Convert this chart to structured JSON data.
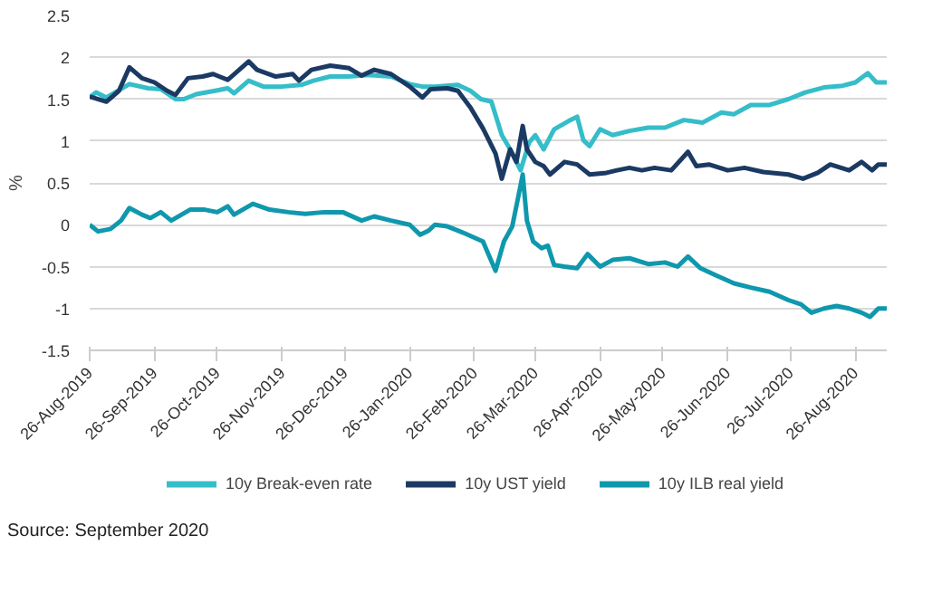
{
  "chart_data": {
    "type": "line",
    "ylabel": "%",
    "xlim": [
      "2019-08-26",
      "2020-09-10"
    ],
    "xticks": [
      {
        "value": "2019-08-26",
        "label": "26-Aug-2019"
      },
      {
        "value": "2019-09-26",
        "label": "26-Sep-2019"
      },
      {
        "value": "2019-10-26",
        "label": "26-Oct-2019"
      },
      {
        "value": "2019-11-26",
        "label": "26-Nov-2019"
      },
      {
        "value": "2019-12-26",
        "label": "26-Dec-2019"
      },
      {
        "value": "2020-01-26",
        "label": "26-Jan-2020"
      },
      {
        "value": "2020-02-26",
        "label": "26-Feb-2020"
      },
      {
        "value": "2020-03-26",
        "label": "26-Mar-2020"
      },
      {
        "value": "2020-04-26",
        "label": "26-Apr-2020"
      },
      {
        "value": "2020-05-26",
        "label": "26-May-2020"
      },
      {
        "value": "2020-06-26",
        "label": "26-Jun-2020"
      },
      {
        "value": "2020-07-26",
        "label": "26-Jul-2020"
      },
      {
        "value": "2020-08-26",
        "label": "26-Aug-2020"
      }
    ],
    "ylim": [
      -1.5,
      2.5
    ],
    "yticks": [
      -1.5,
      -1,
      -0.5,
      0,
      0.5,
      1,
      1.5,
      2,
      2.5
    ],
    "grid": "y",
    "legend": "bottom",
    "marker": "none",
    "line_style": "solid",
    "annotations": [
      "Source: September 2020"
    ],
    "series": [
      {
        "name": "10y Break-even rate",
        "color": "#35bdc9",
        "x": [
          "2019-08-26",
          "2019-08-29",
          "2019-09-03",
          "2019-09-14",
          "2019-09-23",
          "2019-09-29",
          "2019-10-06",
          "2019-10-10",
          "2019-10-16",
          "2019-10-25",
          "2019-10-31",
          "2019-11-03",
          "2019-11-10",
          "2019-11-17",
          "2019-11-26",
          "2019-12-05",
          "2019-12-11",
          "2019-12-19",
          "2019-12-28",
          "2020-01-06",
          "2020-01-17",
          "2020-01-26",
          "2020-02-01",
          "2020-02-07",
          "2020-02-18",
          "2020-02-24",
          "2020-02-29",
          "2020-03-05",
          "2020-03-10",
          "2020-03-14",
          "2020-03-19",
          "2020-03-23",
          "2020-03-26",
          "2020-03-30",
          "2020-04-04",
          "2020-04-11",
          "2020-04-15",
          "2020-04-18",
          "2020-04-21",
          "2020-04-26",
          "2020-05-02",
          "2020-05-10",
          "2020-05-19",
          "2020-05-27",
          "2020-06-05",
          "2020-06-14",
          "2020-06-23",
          "2020-06-29",
          "2020-07-07",
          "2020-07-16",
          "2020-07-25",
          "2020-08-02",
          "2020-08-11",
          "2020-08-20",
          "2020-08-26",
          "2020-09-01",
          "2020-09-05",
          "2020-09-10"
        ],
        "values": [
          1.52,
          1.58,
          1.52,
          1.68,
          1.63,
          1.62,
          1.5,
          1.5,
          1.56,
          1.6,
          1.63,
          1.57,
          1.72,
          1.65,
          1.65,
          1.67,
          1.72,
          1.77,
          1.77,
          1.79,
          1.77,
          1.68,
          1.65,
          1.65,
          1.67,
          1.6,
          1.5,
          1.47,
          1.07,
          0.9,
          0.65,
          0.98,
          1.07,
          0.9,
          1.14,
          1.24,
          1.29,
          1.01,
          0.94,
          1.14,
          1.07,
          1.12,
          1.16,
          1.16,
          1.25,
          1.22,
          1.34,
          1.32,
          1.43,
          1.43,
          1.5,
          1.58,
          1.64,
          1.66,
          1.7,
          1.81,
          1.7,
          1.7
        ]
      },
      {
        "name": "10y UST yield",
        "color": "#1b3a63",
        "x": [
          "2019-08-26",
          "2019-09-03",
          "2019-09-09",
          "2019-09-14",
          "2019-09-20",
          "2019-09-26",
          "2019-10-02",
          "2019-10-06",
          "2019-10-12",
          "2019-10-19",
          "2019-10-24",
          "2019-10-31",
          "2019-11-10",
          "2019-11-14",
          "2019-11-23",
          "2019-12-01",
          "2019-12-04",
          "2019-12-10",
          "2019-12-19",
          "2019-12-28",
          "2020-01-03",
          "2020-01-09",
          "2020-01-17",
          "2020-01-26",
          "2020-02-01",
          "2020-02-05",
          "2020-02-13",
          "2020-02-18",
          "2020-02-24",
          "2020-03-01",
          "2020-03-07",
          "2020-03-10",
          "2020-03-14",
          "2020-03-17",
          "2020-03-20",
          "2020-03-22",
          "2020-03-26",
          "2020-03-30",
          "2020-04-02",
          "2020-04-09",
          "2020-04-15",
          "2020-04-21",
          "2020-04-29",
          "2020-05-04",
          "2020-05-10",
          "2020-05-16",
          "2020-05-22",
          "2020-05-30",
          "2020-06-07",
          "2020-06-11",
          "2020-06-17",
          "2020-06-26",
          "2020-07-04",
          "2020-07-13",
          "2020-07-25",
          "2020-08-01",
          "2020-08-08",
          "2020-08-14",
          "2020-08-23",
          "2020-08-29",
          "2020-09-03",
          "2020-09-06",
          "2020-09-10"
        ],
        "values": [
          1.53,
          1.47,
          1.6,
          1.88,
          1.75,
          1.7,
          1.6,
          1.55,
          1.75,
          1.77,
          1.8,
          1.73,
          1.95,
          1.85,
          1.77,
          1.8,
          1.72,
          1.85,
          1.9,
          1.87,
          1.78,
          1.85,
          1.8,
          1.65,
          1.52,
          1.62,
          1.63,
          1.6,
          1.4,
          1.15,
          0.85,
          0.55,
          0.9,
          0.75,
          1.18,
          0.9,
          0.75,
          0.7,
          0.6,
          0.75,
          0.72,
          0.6,
          0.62,
          0.65,
          0.68,
          0.65,
          0.68,
          0.65,
          0.87,
          0.7,
          0.72,
          0.65,
          0.68,
          0.63,
          0.6,
          0.55,
          0.62,
          0.72,
          0.65,
          0.75,
          0.65,
          0.72,
          0.72
        ]
      },
      {
        "name": "10y ILB real yield",
        "color": "#0f98ad",
        "x": [
          "2019-08-26",
          "2019-08-30",
          "2019-09-05",
          "2019-09-10",
          "2019-09-14",
          "2019-09-20",
          "2019-09-24",
          "2019-09-29",
          "2019-10-04",
          "2019-10-13",
          "2019-10-20",
          "2019-10-26",
          "2019-10-31",
          "2019-11-03",
          "2019-11-12",
          "2019-11-20",
          "2019-11-29",
          "2019-12-07",
          "2019-12-16",
          "2019-12-25",
          "2020-01-03",
          "2020-01-09",
          "2020-01-17",
          "2020-01-26",
          "2020-01-31",
          "2020-02-04",
          "2020-02-07",
          "2020-02-13",
          "2020-02-21",
          "2020-03-01",
          "2020-03-07",
          "2020-03-11",
          "2020-03-15",
          "2020-03-18",
          "2020-03-20",
          "2020-03-22",
          "2020-03-25",
          "2020-03-29",
          "2020-04-01",
          "2020-04-04",
          "2020-04-09",
          "2020-04-15",
          "2020-04-20",
          "2020-04-26",
          "2020-05-02",
          "2020-05-10",
          "2020-05-19",
          "2020-05-27",
          "2020-06-02",
          "2020-06-07",
          "2020-06-13",
          "2020-06-20",
          "2020-06-29",
          "2020-07-07",
          "2020-07-16",
          "2020-07-25",
          "2020-07-31",
          "2020-08-05",
          "2020-08-11",
          "2020-08-17",
          "2020-08-23",
          "2020-08-29",
          "2020-09-02",
          "2020-09-06",
          "2020-09-10"
        ],
        "values": [
          0.0,
          -0.08,
          -0.05,
          0.05,
          0.2,
          0.12,
          0.08,
          0.15,
          0.05,
          0.18,
          0.18,
          0.15,
          0.22,
          0.12,
          0.25,
          0.18,
          0.15,
          0.13,
          0.15,
          0.15,
          0.05,
          0.1,
          0.05,
          0.0,
          -0.12,
          -0.07,
          0.0,
          -0.02,
          -0.1,
          -0.2,
          -0.55,
          -0.2,
          -0.02,
          0.35,
          0.6,
          0.05,
          -0.2,
          -0.28,
          -0.25,
          -0.48,
          -0.5,
          -0.52,
          -0.35,
          -0.5,
          -0.42,
          -0.4,
          -0.47,
          -0.45,
          -0.5,
          -0.38,
          -0.52,
          -0.6,
          -0.7,
          -0.75,
          -0.8,
          -0.9,
          -0.95,
          -1.05,
          -1.0,
          -0.97,
          -1.0,
          -1.05,
          -1.1,
          -1.0,
          -1.0
        ]
      }
    ]
  }
}
